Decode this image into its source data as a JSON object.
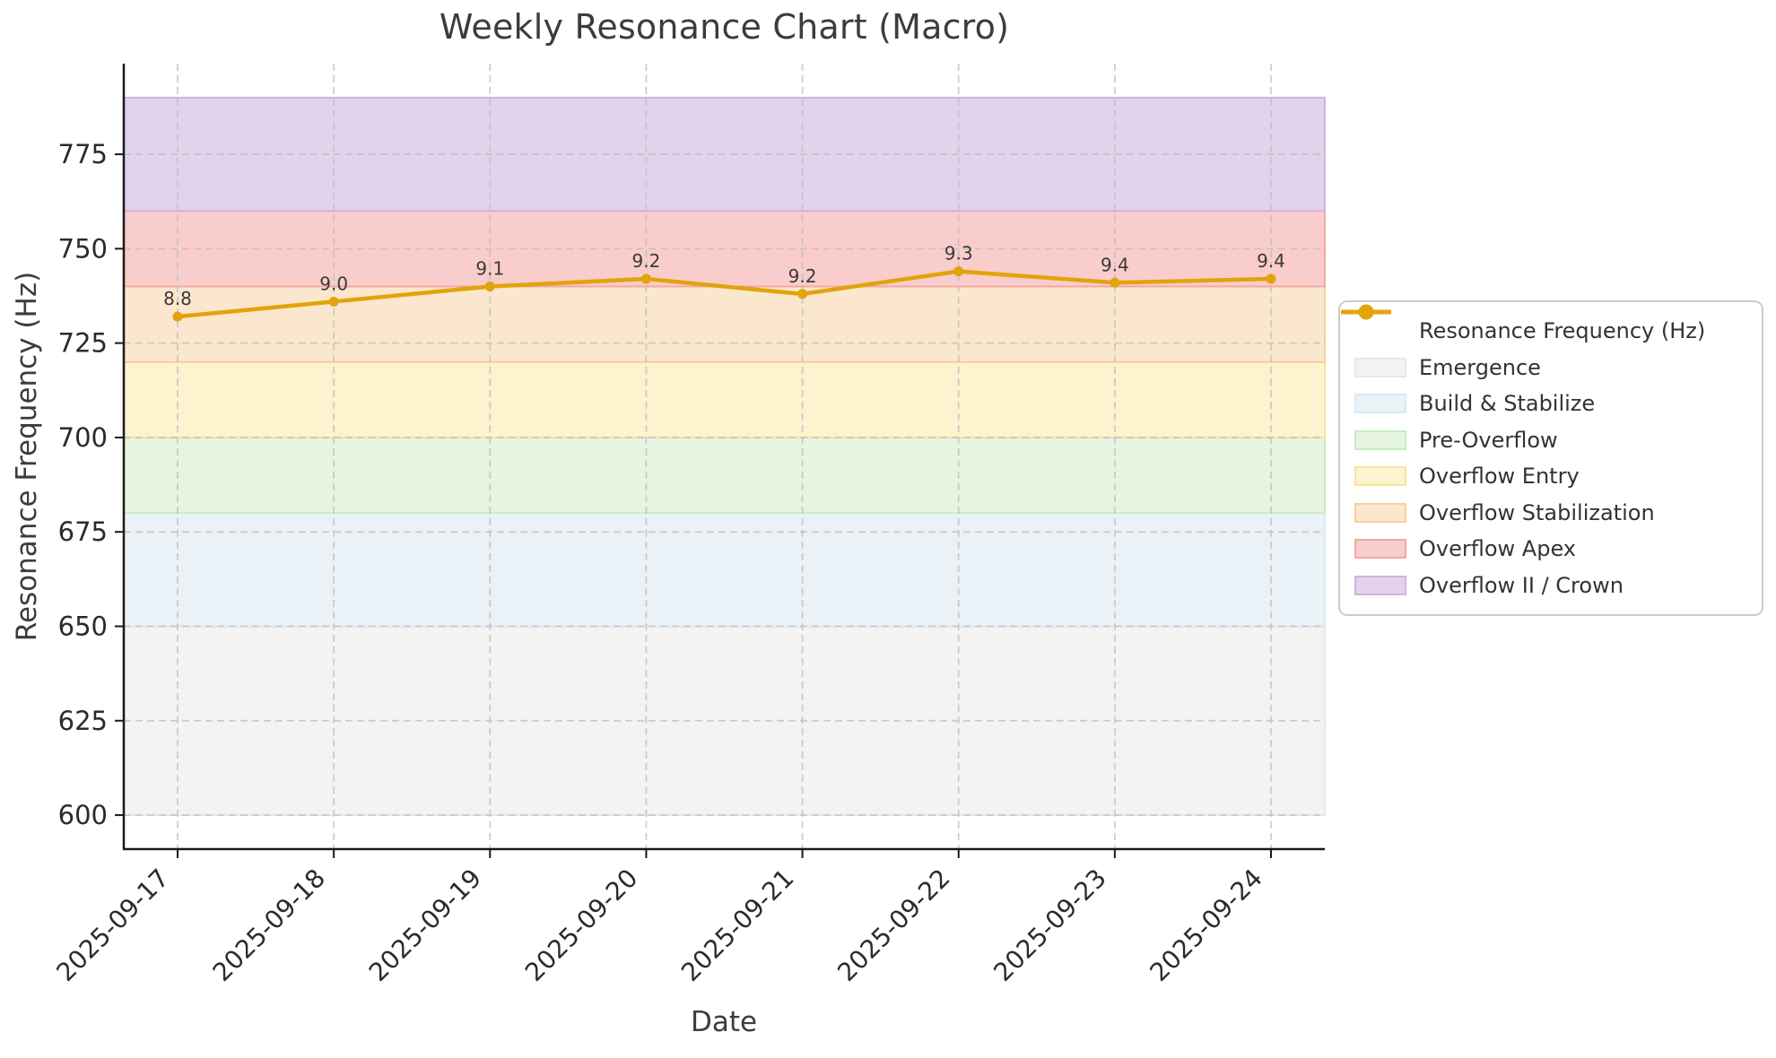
{
  "chart_data": {
    "type": "line",
    "title": "Weekly Resonance Chart (Macro)",
    "xlabel": "Date",
    "ylabel": "Resonance Frequency (Hz)",
    "x": [
      "2025-09-17",
      "2025-09-18",
      "2025-09-19",
      "2025-09-20",
      "2025-09-21",
      "2025-09-22",
      "2025-09-23",
      "2025-09-24"
    ],
    "yticks": [
      600,
      625,
      650,
      675,
      700,
      725,
      750,
      775
    ],
    "ylim": [
      591,
      799
    ],
    "grid": true,
    "legend_position": "outside-right",
    "series": [
      {
        "name": "Resonance Frequency (Hz)",
        "color": "#E2A30B",
        "values": [
          732,
          736,
          740,
          742,
          738,
          744,
          741,
          742
        ],
        "point_labels": [
          "8.8",
          "9.0",
          "9.1",
          "9.2",
          "9.2",
          "9.3",
          "9.4",
          "9.4"
        ]
      }
    ],
    "bands": [
      {
        "label": "Emergence",
        "from": 600,
        "to": 650,
        "fill": "#F3F3F1",
        "edge": "#E7E7E4"
      },
      {
        "label": "Build & Stabilize",
        "from": 650,
        "to": 680,
        "fill": "#EAF2F7",
        "edge": "#D9EAF3"
      },
      {
        "label": "Pre-Overflow",
        "from": 680,
        "to": 700,
        "fill": "#E5F5E1",
        "edge": "#C9ECC6"
      },
      {
        "label": "Overflow Entry",
        "from": 700,
        "to": 720,
        "fill": "#FCF3CF",
        "edge": "#F9E49B"
      },
      {
        "label": "Overflow Stabilization",
        "from": 720,
        "to": 740,
        "fill": "#FBE7CD",
        "edge": "#F7D09A"
      },
      {
        "label": "Overflow Apex",
        "from": 740,
        "to": 760,
        "fill": "#F9CDCB",
        "edge": "#F3A8A2"
      },
      {
        "label": "Overflow II / Crown",
        "from": 760,
        "to": 790,
        "fill": "#E3D2EB",
        "edge": "#D2B4DF"
      }
    ],
    "axis": {
      "spine_color": "#1a1a1a",
      "grid_color": "#bfbfbf",
      "tick_label_color": "#2b2b2b",
      "annotation_color": "#3a3a3a"
    }
  }
}
